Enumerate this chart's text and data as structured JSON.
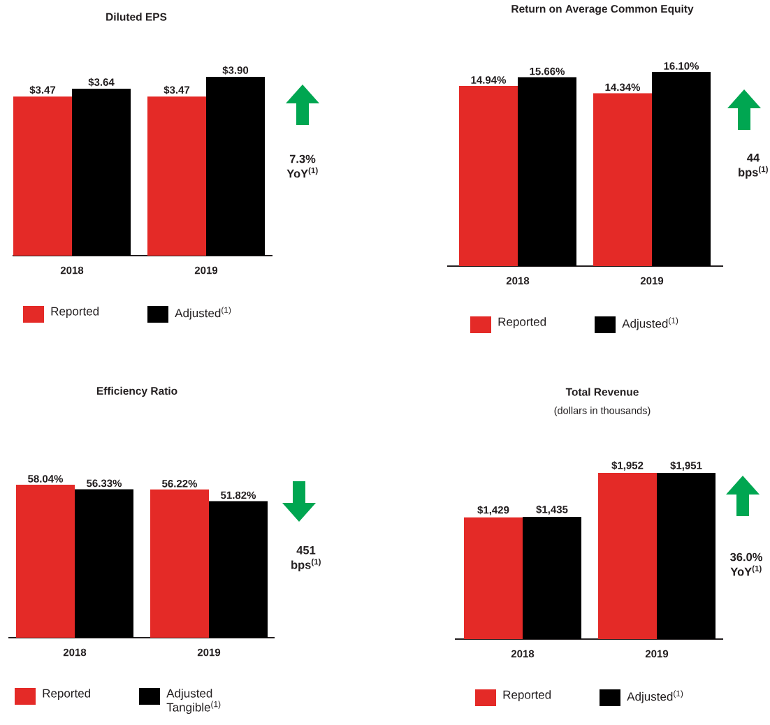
{
  "chart_data": [
    {
      "type": "bar",
      "title": "Diluted EPS",
      "categories": [
        "2018",
        "2019"
      ],
      "series": [
        {
          "name": "Reported",
          "color": "#e42a27",
          "values": [
            3.47,
            3.47
          ],
          "value_labels": [
            "$3.47",
            "$3.47"
          ]
        },
        {
          "name": "Adjusted$^{(1)}$",
          "color": "#000000",
          "values": [
            3.64,
            3.9
          ],
          "value_labels": [
            "$3.64",
            "$3.90"
          ]
        }
      ],
      "tick_labels": "x",
      "legend": "bottom",
      "annotations": [
        "7.3% YoY$^{(1)}$"
      ]
    },
    {
      "type": "bar",
      "title": "Return on Average Common Equity",
      "categories": [
        "2018",
        "2019"
      ],
      "series": [
        {
          "name": "Reported",
          "color": "#e42a27",
          "values": [
            14.94,
            14.34
          ],
          "value_labels": [
            "14.94%",
            "14.34%"
          ]
        },
        {
          "name": "Adjusted$^{(1)}$",
          "color": "#000000",
          "values": [
            15.66,
            16.1
          ],
          "value_labels": [
            "15.66%",
            "16.10%"
          ]
        }
      ],
      "tick_labels": "x",
      "legend": "bottom",
      "annotations": [
        "44 bps$^{(1)}$"
      ]
    },
    {
      "type": "bar",
      "title": "Efficiency Ratio",
      "categories": [
        "2018",
        "2019"
      ],
      "series": [
        {
          "name": "Reported",
          "color": "#e42a27",
          "values": [
            58.04,
            56.22
          ],
          "value_labels": [
            "58.04%",
            "56.22%"
          ]
        },
        {
          "name": "Adjusted Tangible$^{(1)}$",
          "color": "#000000",
          "values": [
            56.33,
            51.82
          ],
          "value_labels": [
            "56.33%",
            "51.82%"
          ]
        }
      ],
      "tick_labels": "x",
      "legend": "bottom",
      "annotations": [
        "451 bps$^{(1)}$"
      ]
    },
    {
      "type": "bar",
      "title": "Total Revenue",
      "subtitle": "(dollars in thousands)",
      "categories": [
        "2018",
        "2019"
      ],
      "series": [
        {
          "name": "Reported",
          "color": "#e42a27",
          "values": [
            1429,
            1952
          ],
          "value_labels": [
            "$1,429",
            "$1,952"
          ]
        },
        {
          "name": "Adjusted$^{(1)}$",
          "color": "#000000",
          "values": [
            1435,
            1951
          ],
          "value_labels": [
            "$1,435",
            "$1,951"
          ]
        }
      ],
      "tick_labels": "x",
      "legend": "bottom",
      "annotations": [
        "36.0% YoY$^{(1)}$"
      ]
    }
  ]
}
